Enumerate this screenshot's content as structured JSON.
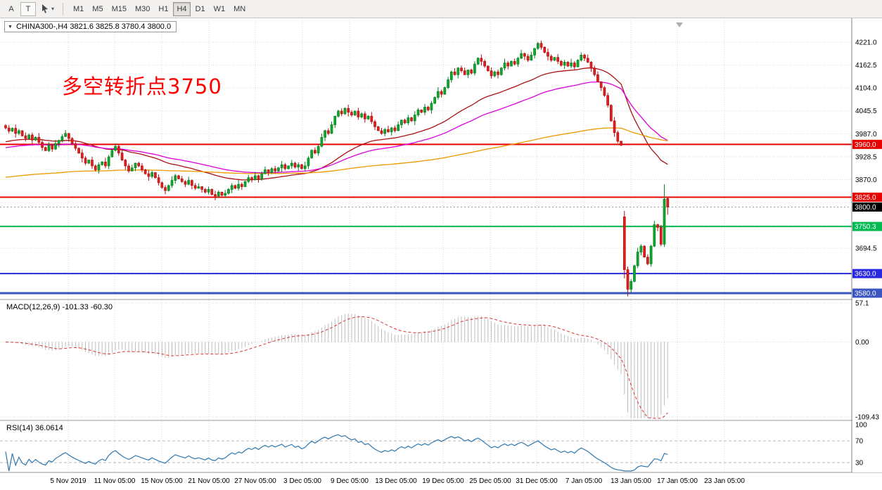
{
  "toolbar": {
    "annotate_button": "A",
    "text_button": "T",
    "cursor_button_caret": "▾",
    "timeframes": [
      {
        "label": "M1",
        "active": false
      },
      {
        "label": "M5",
        "active": false
      },
      {
        "label": "M15",
        "active": false
      },
      {
        "label": "M30",
        "active": false
      },
      {
        "label": "H1",
        "active": false
      },
      {
        "label": "H4",
        "active": true
      },
      {
        "label": "D1",
        "active": false
      },
      {
        "label": "W1",
        "active": false
      },
      {
        "label": "MN",
        "active": false
      }
    ]
  },
  "chart": {
    "title_line": "CHINA300-,H4 3821.6 3825.8 3780.4 3800.0",
    "symbol": "CHINA300-",
    "timeframe": "H4",
    "ohlc": {
      "open": 3821.6,
      "high": 3825.8,
      "low": 3780.4,
      "close": 3800.0
    },
    "annotation": {
      "text": "多空转折点3750",
      "color": "#ff0000"
    }
  },
  "chart_data": {
    "type": "candlestick",
    "title": "CHINA300- H4",
    "up_color": "#0fa82e",
    "up_border": "#067f1e",
    "down_color": "#e02020",
    "down_border": "#b01010",
    "ylim": [
      3566,
      4272
    ],
    "price_labels": [
      4221.0,
      4162.5,
      4104.0,
      4045.5,
      3987.0,
      3928.5,
      3870.0,
      3694.5
    ],
    "price_grid": [
      4221,
      4162.5,
      4104,
      4045.5,
      3987,
      3928.5,
      3870,
      3811.5,
      3753,
      3694.5,
      3636,
      3577.5
    ],
    "time_labels": [
      "5 Nov 2019",
      "11 Nov 05:00",
      "15 Nov 05:00",
      "21 Nov 05:00",
      "27 Nov 05:00",
      "3 Dec 05:00",
      "9 Dec 05:00",
      "13 Dec 05:00",
      "19 Dec 05:00",
      "25 Dec 05:00",
      "31 Dec 05:00",
      "7 Jan 05:00",
      "13 Jan 05:00",
      "17 Jan 05:00",
      "23 Jan 05:00"
    ],
    "hlines": [
      {
        "value": 3960.0,
        "label": "3960.0",
        "color": "#e80000",
        "width": 2
      },
      {
        "value": 3825.0,
        "label": "3825.0",
        "color": "#e80000",
        "width": 2
      },
      {
        "value": 3750.3,
        "label": "3750.3",
        "color": "#00b950",
        "width": 2
      },
      {
        "value": 3630.0,
        "label": "3630.0",
        "color": "#2828e0",
        "width": 2
      },
      {
        "value": 3580.0,
        "label": "3580.0",
        "color": "#3a55c0",
        "width": 3
      }
    ],
    "current_price": {
      "value": 3800.0,
      "label": "3800.0",
      "bg": "#000000",
      "fg": "#ffffff"
    },
    "moving_averages": [
      {
        "period": 40,
        "color": "#aa1111",
        "seed": 3965
      },
      {
        "period": 70,
        "color": "#dd00dd",
        "seed": 3950
      },
      {
        "period": 250,
        "color": "#ee9900",
        "seed": 3875
      }
    ],
    "wick_pattern": [
      3,
      6,
      2,
      8,
      4,
      1,
      7,
      3,
      5,
      2,
      9,
      4,
      2,
      6,
      3,
      8,
      2,
      5,
      7,
      1
    ],
    "open_overrides": {
      "186": 3775,
      "199": 3821.6
    },
    "hl_overrides": {
      "186": [
        3790,
        3618
      ],
      "187": [
        3648,
        3572
      ],
      "198": [
        3858,
        3698
      ],
      "199": [
        3825.8,
        3780.4
      ]
    },
    "closes": [
      4002,
      3994,
      4001,
      3988,
      3995,
      3982,
      3975,
      3984,
      3971,
      3978,
      3965,
      3952,
      3944,
      3958,
      3948,
      3962,
      3970,
      3980,
      3988,
      3975,
      3962,
      3950,
      3938,
      3925,
      3912,
      3920,
      3905,
      3895,
      3908,
      3915,
      3905,
      3928,
      3945,
      3955,
      3938,
      3920,
      3905,
      3892,
      3900,
      3912,
      3905,
      3895,
      3885,
      3878,
      3888,
      3875,
      3862,
      3850,
      3842,
      3855,
      3868,
      3880,
      3872,
      3865,
      3858,
      3868,
      3855,
      3848,
      3852,
      3845,
      3838,
      3845,
      3832,
      3828,
      3838,
      3830,
      3835,
      3845,
      3855,
      3848,
      3858,
      3852,
      3865,
      3875,
      3870,
      3880,
      3872,
      3885,
      3895,
      3888,
      3898,
      3892,
      3900,
      3908,
      3898,
      3905,
      3912,
      3902,
      3908,
      3898,
      3905,
      3925,
      3945,
      3938,
      3955,
      3978,
      3995,
      3988,
      4010,
      4032,
      4045,
      4038,
      4052,
      4042,
      4035,
      4045,
      4030,
      4038,
      4025,
      4032,
      4018,
      4005,
      3995,
      3988,
      3998,
      3992,
      4002,
      3995,
      4010,
      4022,
      4015,
      4028,
      4020,
      4035,
      4048,
      4042,
      4055,
      4048,
      4065,
      4080,
      4095,
      4088,
      4105,
      4125,
      4145,
      4138,
      4155,
      4148,
      4138,
      4150,
      4142,
      4165,
      4180,
      4172,
      4160,
      4148,
      4135,
      4145,
      4138,
      4155,
      4168,
      4160,
      4172,
      4165,
      4180,
      4192,
      4185,
      4175,
      4188,
      4205,
      4218,
      4208,
      4195,
      4185,
      4175,
      4182,
      4172,
      4162,
      4170,
      4160,
      4168,
      4158,
      4175,
      4188,
      4180,
      4170,
      4155,
      4138,
      4120,
      4105,
      4085,
      4060,
      4020,
      3990,
      3968,
      3958,
      3640,
      3590,
      3610,
      3650,
      3685,
      3700,
      3672,
      3655,
      3700,
      3755,
      3748,
      3705,
      3820,
      3800
    ]
  },
  "macd": {
    "label": "MACD(12,26,9) -101.33 -60.30",
    "fast": 12,
    "slow": 26,
    "signal": 9,
    "main_value": -101.33,
    "signal_value": -60.3,
    "scale_labels": [
      {
        "value": 57.1,
        "text": "57.1"
      },
      {
        "value": 0,
        "text": "0.00"
      },
      {
        "value": -109.43,
        "text": "-109.43"
      }
    ],
    "histogram_color": "#bdbdbd",
    "signal_color": "#e03030"
  },
  "rsi": {
    "label": "RSI(14) 36.0614",
    "period": 14,
    "value": 36.0614,
    "line_color": "#2e78b0",
    "scale_labels": [
      {
        "value": 100,
        "text": "100"
      },
      {
        "value": 70,
        "text": "70"
      },
      {
        "value": 30,
        "text": "30"
      }
    ],
    "level_lines": [
      70,
      30
    ]
  }
}
